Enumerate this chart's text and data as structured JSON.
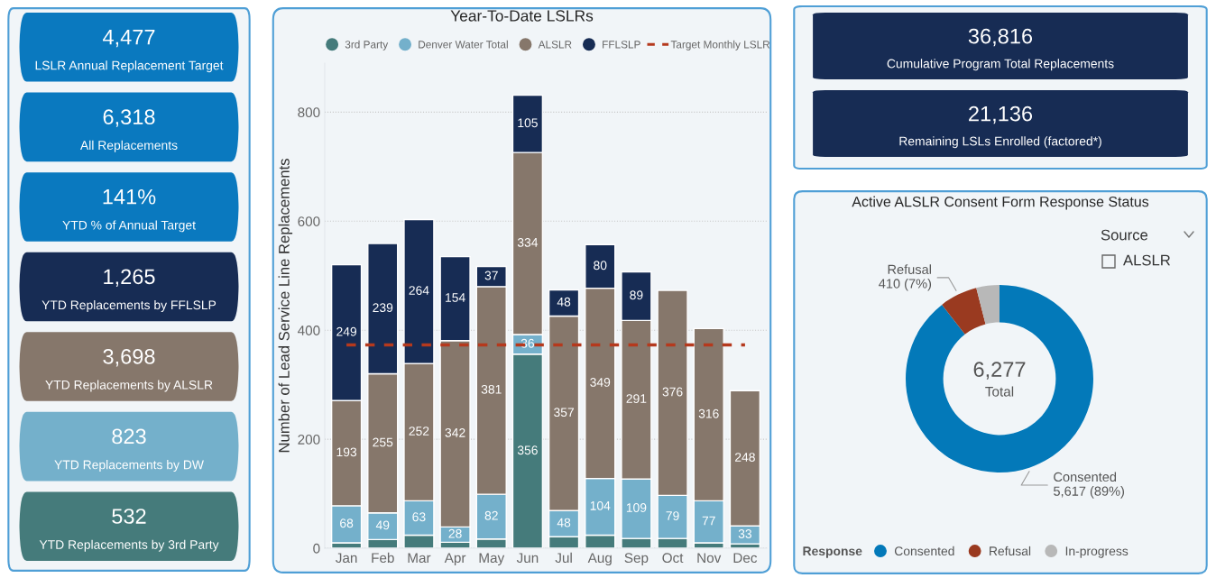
{
  "chart_data": [
    {
      "type": "other",
      "categories": [
        "LSLR Annual Replacement Target",
        "All Replacements",
        "YTD % of Annual Target",
        "YTD Replacements by FFLSLP",
        "YTD Replacements by ALSLR",
        "YTD Replacements by DW",
        "YTD Replacements by 3rd Party"
      ],
      "values": [
        4477,
        6318,
        141,
        1265,
        3698,
        823,
        532
      ],
      "value_labels": [
        "4,477",
        "6,318",
        "141%",
        "1,265",
        "3,698",
        "823",
        "532"
      ],
      "colors": [
        "#0a79bf",
        "#0a79bf",
        "#0a79bf",
        "#172c54",
        "#86776b",
        "#74b0cb",
        "#457b7b"
      ]
    },
    {
      "type": "bar",
      "stacked": true,
      "title": "Year-To-Date LSLRs",
      "ylabel": "Number of Lead Service Line Replacements",
      "categories": [
        "Jan",
        "Feb",
        "Mar",
        "Apr",
        "May",
        "Jun",
        "Jul",
        "Aug",
        "Sep",
        "Oct",
        "Nov",
        "Dec"
      ],
      "ylim": [
        0,
        890
      ],
      "yticks": [
        0,
        200,
        400,
        600,
        800
      ],
      "grid": "y",
      "legend": "top",
      "series": [
        {
          "name": "3rd Party",
          "color": "#457b7b",
          "values": [
            10,
            16,
            24,
            11,
            17,
            356,
            21,
            24,
            18,
            18,
            10,
            8
          ],
          "value_labels": [
            null,
            null,
            null,
            null,
            null,
            "356",
            null,
            null,
            null,
            null,
            null,
            null
          ]
        },
        {
          "name": "Denver Water Total",
          "color": "#74b0cb",
          "values": [
            68,
            49,
            63,
            28,
            82,
            36,
            48,
            104,
            109,
            79,
            77,
            33
          ],
          "value_labels": [
            "68",
            "49",
            "63",
            "28",
            "82",
            "36",
            "48",
            "104",
            "109",
            "79",
            "77",
            "33"
          ]
        },
        {
          "name": "ALSLR",
          "color": "#86776b",
          "values": [
            193,
            255,
            252,
            342,
            381,
            334,
            357,
            349,
            291,
            376,
            316,
            248
          ],
          "value_labels": [
            "193",
            "255",
            "252",
            "342",
            "381",
            "334",
            "357",
            "349",
            "291",
            "376",
            "316",
            "248"
          ]
        },
        {
          "name": "FFLSLP",
          "color": "#172c54",
          "values": [
            249,
            239,
            264,
            154,
            37,
            105,
            48,
            80,
            89,
            null,
            null,
            null
          ],
          "value_labels": [
            "249",
            "239",
            "264",
            "154",
            "37",
            "105",
            "48",
            "80",
            "89",
            null,
            null,
            null
          ]
        },
        {
          "name": "Target Monthly LSLR",
          "type": "line",
          "line_style": "dashed",
          "color": "#b5391d",
          "values": [
            373,
            373,
            373,
            373,
            373,
            373,
            373,
            373,
            373,
            373,
            373,
            373
          ]
        }
      ]
    },
    {
      "type": "other",
      "categories": [
        "Cumulative Program Total Replacements",
        "Remaining LSLs Enrolled (factored*)"
      ],
      "values": [
        36816,
        21136
      ],
      "value_labels": [
        "36,816",
        "21,136"
      ],
      "colors": [
        "#172c54",
        "#172c54"
      ]
    },
    {
      "type": "donut",
      "title": "Active ALSLR Consent Form Response Status",
      "categories": [
        "Consented",
        "Refusal",
        "In-progress"
      ],
      "values": [
        5617,
        410,
        250
      ],
      "value_labels": [
        "Consented\n5,617 (89%)",
        "Refusal\n410 (7%)",
        null
      ],
      "colors": [
        "#0379b9",
        "#9a3a20",
        "#b8b8b8"
      ],
      "legend": "bottom",
      "legend_title": "Response",
      "annotations": [
        "6,277",
        "Total",
        "Source",
        "ALSLR"
      ]
    }
  ]
}
